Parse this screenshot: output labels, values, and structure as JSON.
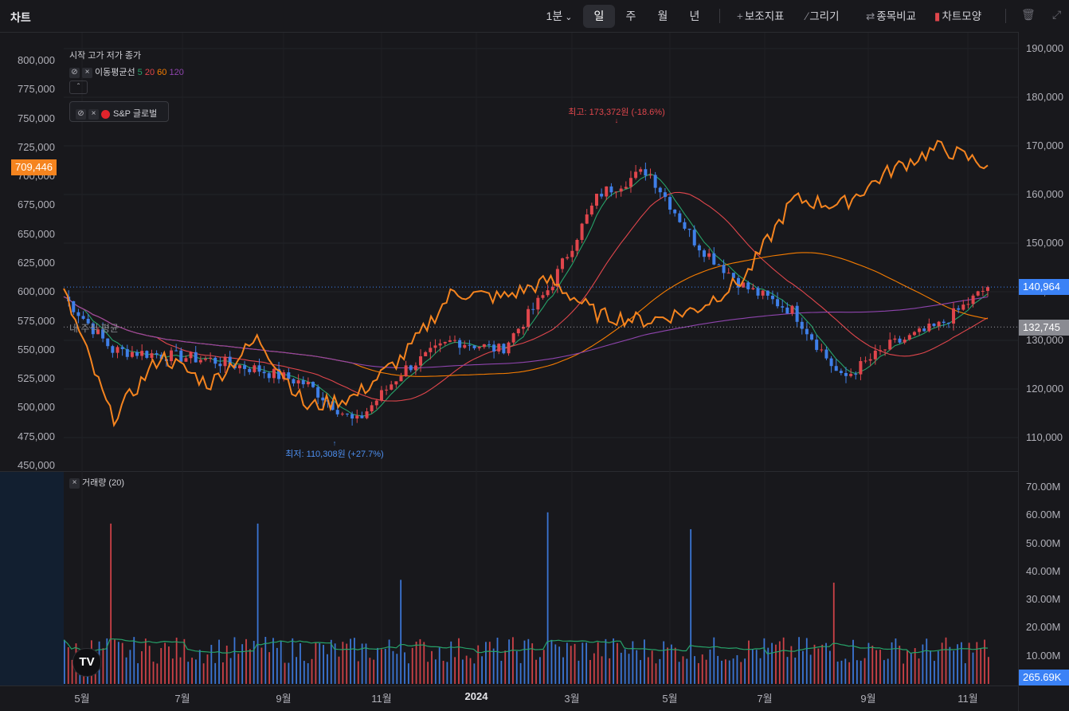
{
  "toolbar": {
    "title": "차트",
    "interval": "1분",
    "periods": [
      "일",
      "주",
      "월",
      "년"
    ],
    "active_period": "일",
    "indicator_label": "보조지표",
    "draw_label": "그리기",
    "compare_label": "종목비교",
    "style_label": "차트모양"
  },
  "legend": {
    "ohlc": "시작 고가 저가 종가",
    "ma_label": "이동평균선",
    "ma_periods": [
      "5",
      "20",
      "60",
      "120"
    ],
    "ma_colors": [
      "#26a269",
      "#e0464c",
      "#f57c00",
      "#8e44ad"
    ],
    "compare_name": "S&P 글로벌",
    "volume_label": "거래량 (20)"
  },
  "annotations": {
    "high": "최고: 173,372원 (-18.6%)",
    "low": "최저: 110,308원 (+27.7%)",
    "avg_label": "내 주식 평균"
  },
  "price_tags": {
    "left": "709,446",
    "current": "140,964",
    "avg": "132,745",
    "volume": "265.69K"
  },
  "colors": {
    "up": "#e0464c",
    "down": "#3f7fe8",
    "compare": "#f5841f",
    "vol_ma": "#26a269",
    "current_tag": "#3b82f6",
    "avg_tag": "#8a8b92"
  },
  "chart_data": [
    {
      "type": "candlestick",
      "title": "",
      "y_right_ticks": [
        "190,000",
        "180,000",
        "170,000",
        "160,000",
        "150,000",
        "140,000",
        "130,000",
        "120,000",
        "110,000"
      ],
      "y_left_ticks": [
        "800,000",
        "775,000",
        "750,000",
        "725,000",
        "700,000",
        "675,000",
        "650,000",
        "625,000",
        "600,000",
        "575,000",
        "550,000",
        "525,000",
        "500,000",
        "475,000",
        "450,000"
      ],
      "x_ticks": [
        "5월",
        "7월",
        "9월",
        "11월",
        "2024",
        "3월",
        "5월",
        "7월",
        "9월",
        "11월"
      ],
      "ylim_right": [
        106000,
        192000
      ],
      "ylim_left": [
        446000,
        806000
      ],
      "series": [
        {
          "name": "close",
          "axis": "right",
          "x": [
            "2023-04",
            "2023-05",
            "2023-06",
            "2023-07",
            "2023-08",
            "2023-09",
            "2023-10",
            "2023-11",
            "2023-12",
            "2024-01",
            "2024-02",
            "2024-03",
            "2024-04",
            "2024-05",
            "2024-06",
            "2024-07",
            "2024-08",
            "2024-09",
            "2024-10",
            "2024-11"
          ],
          "values": [
            139000,
            128000,
            127000,
            126000,
            124000,
            121000,
            113000,
            124000,
            130000,
            128000,
            141000,
            160000,
            165000,
            150000,
            141000,
            136000,
            122000,
            129000,
            133000,
            140964
          ]
        },
        {
          "name": "S&P 글로벌",
          "axis": "left",
          "x": [
            "2023-04",
            "2023-05",
            "2023-06",
            "2023-07",
            "2023-08",
            "2023-09",
            "2023-10",
            "2023-11",
            "2023-12",
            "2024-01",
            "2024-02",
            "2024-03",
            "2024-04",
            "2024-05",
            "2024-06",
            "2024-07",
            "2024-08",
            "2024-09",
            "2024-10",
            "2024-11"
          ],
          "values": [
            600000,
            490000,
            545000,
            520000,
            560000,
            500000,
            510000,
            545000,
            600000,
            595000,
            610000,
            580000,
            575000,
            585000,
            612000,
            680000,
            675000,
            705000,
            725000,
            709446
          ]
        }
      ],
      "high": 173372,
      "low": 110308,
      "average_cost": 132745,
      "current": 140964
    },
    {
      "type": "bar",
      "title": "거래량 (20)",
      "y_ticks": [
        "70.00M",
        "60.00M",
        "50.00M",
        "40.00M",
        "30.00M",
        "20.00M",
        "10.00M"
      ],
      "ylim": [
        0,
        76000000
      ],
      "notable_spikes": [
        {
          "x": "2023-05",
          "value": 57000000
        },
        {
          "x": "2023-08",
          "value": 57000000
        },
        {
          "x": "2023-11",
          "value": 37000000
        },
        {
          "x": "2024-02",
          "value": 61000000
        },
        {
          "x": "2024-05",
          "value": 55000000
        },
        {
          "x": "2024-08",
          "value": 36000000
        }
      ],
      "typical_volume": 12000000,
      "current": "265.69K"
    }
  ]
}
